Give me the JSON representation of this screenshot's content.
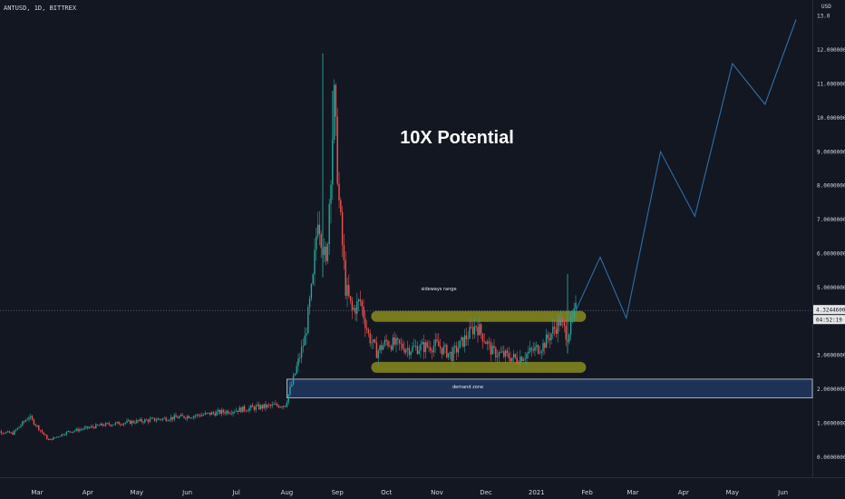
{
  "header": {
    "symbol": "ANTUSD, 1D, BITTREX",
    "currency": "USD"
  },
  "annotations": {
    "headline": "10X Potential",
    "range_label": "sideways range",
    "zone_label": "demand zone"
  },
  "price_tags": {
    "last": "4.32446001",
    "countdown": "04:52:19"
  },
  "colors": {
    "background": "#131722",
    "up": "#26a69a",
    "down": "#ef5350",
    "projection": "#2f6fa8",
    "highlight": "#8a8b1f",
    "zone_fill": "#1e3258",
    "zone_border": "#c8d0e0",
    "text": "#d1d4dc"
  },
  "chart_data": {
    "type": "candlestick",
    "title": "",
    "xlabel": "",
    "ylabel": "",
    "ylim": [
      -0.9,
      13.1
    ],
    "grid": false,
    "x_ticks": [
      "Mar",
      "Apr",
      "May",
      "Jun",
      "Jul",
      "Aug",
      "Sep",
      "Oct",
      "Nov",
      "Dec",
      "2021",
      "Feb",
      "Mar",
      "Apr",
      "May",
      "Jun"
    ],
    "y_ticks": [
      "0.00000000",
      "1.00000000",
      "2.00000000",
      "3.00000000",
      "4.00000000",
      "5.00000000",
      "6.00000000",
      "7.00000000",
      "8.00000000",
      "9.00000000",
      "10.00000000",
      "11.00000000",
      "12.00000000",
      "13.0"
    ],
    "price_path": [
      [
        "2020-02-01",
        0.8
      ],
      [
        "2020-02-15",
        0.7
      ],
      [
        "2020-02-25",
        1.2
      ],
      [
        "2020-03-08",
        0.5
      ],
      [
        "2020-03-20",
        0.75
      ],
      [
        "2020-04-10",
        0.95
      ],
      [
        "2020-05-10",
        1.1
      ],
      [
        "2020-06-10",
        1.25
      ],
      [
        "2020-07-10",
        1.45
      ],
      [
        "2020-07-31",
        1.55
      ],
      [
        "2020-08-05",
        2.3
      ],
      [
        "2020-08-12",
        3.5
      ],
      [
        "2020-08-17",
        5.2
      ],
      [
        "2020-08-20",
        7.2
      ],
      [
        "2020-08-25",
        5.6
      ],
      [
        "2020-08-30",
        10.5
      ],
      [
        "2020-09-02",
        7.5
      ],
      [
        "2020-09-06",
        5.0
      ],
      [
        "2020-09-10",
        4.3
      ],
      [
        "2020-09-15",
        4.6
      ],
      [
        "2020-09-20",
        3.6
      ],
      [
        "2020-09-25",
        3.1
      ],
      [
        "2020-10-01",
        3.4
      ],
      [
        "2020-10-15",
        3.2
      ],
      [
        "2020-11-01",
        3.3
      ],
      [
        "2020-11-10",
        3.0
      ],
      [
        "2020-11-25",
        3.9
      ],
      [
        "2020-12-05",
        3.1
      ],
      [
        "2020-12-20",
        2.9
      ],
      [
        "2021-01-05",
        3.3
      ],
      [
        "2021-01-15",
        4.0
      ],
      [
        "2021-01-20",
        3.6
      ],
      [
        "2021-01-25",
        4.32
      ]
    ],
    "spikes": [
      {
        "date": "2020-08-23",
        "high": 11.9
      },
      {
        "date": "2020-08-29",
        "high": 10.8
      },
      {
        "date": "2021-01-20",
        "high": 5.4
      }
    ],
    "projection_path": [
      [
        "2021-01-25",
        4.32
      ],
      [
        "2021-02-09",
        5.9
      ],
      [
        "2021-02-25",
        4.1
      ],
      [
        "2021-03-18",
        9.0
      ],
      [
        "2021-04-08",
        7.1
      ],
      [
        "2021-05-01",
        11.6
      ],
      [
        "2021-05-21",
        10.4
      ],
      [
        "2021-06-09",
        12.9
      ]
    ],
    "last_price": 4.32446001,
    "sideways_range": {
      "from": "2020-09-25",
      "to": "2021-01-28",
      "top": 4.15,
      "bottom": 2.65
    },
    "demand_zone": {
      "from": "2020-08-01",
      "top": 2.3,
      "bottom": 1.75
    }
  }
}
